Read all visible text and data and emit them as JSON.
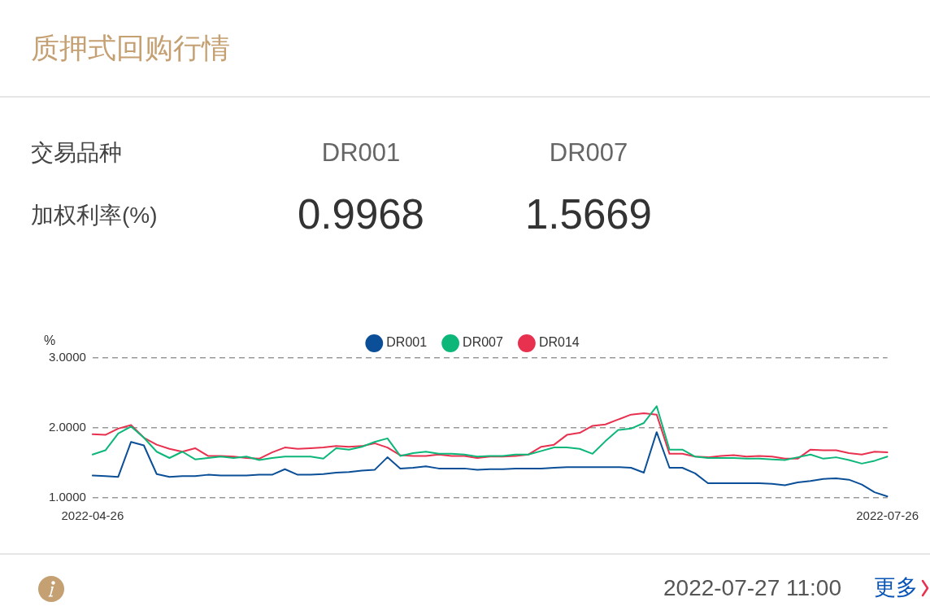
{
  "chart_data": {
    "type": "line",
    "title": "质押式回购行情",
    "ylabel": "%",
    "categories": [
      "2022-04-26",
      null,
      null,
      null,
      null,
      null,
      null,
      null,
      null,
      null,
      null,
      null,
      null,
      null,
      null,
      null,
      null,
      null,
      null,
      null,
      null,
      null,
      null,
      null,
      null,
      null,
      null,
      null,
      null,
      null,
      null,
      null,
      null,
      null,
      null,
      null,
      null,
      null,
      null,
      null,
      null,
      null,
      null,
      null,
      null,
      null,
      null,
      null,
      null,
      null,
      null,
      null,
      null,
      null,
      null,
      null,
      null,
      null,
      null,
      null,
      null,
      null,
      "2022-07-26"
    ],
    "series": [
      {
        "name": "DR001",
        "color": "#0b4f98",
        "values": [
          1.32,
          1.31,
          1.3,
          1.8,
          1.75,
          1.34,
          1.3,
          1.31,
          1.31,
          1.33,
          1.32,
          1.32,
          1.32,
          1.33,
          1.33,
          1.41,
          1.33,
          1.33,
          1.34,
          1.36,
          1.37,
          1.39,
          1.4,
          1.58,
          1.42,
          1.43,
          1.45,
          1.42,
          1.42,
          1.42,
          1.4,
          1.41,
          1.41,
          1.42,
          1.42,
          1.42,
          1.43,
          1.44,
          1.44,
          1.44,
          1.44,
          1.44,
          1.43,
          1.36,
          1.94,
          1.43,
          1.43,
          1.35,
          1.21,
          1.21,
          1.21,
          1.21,
          1.21,
          1.2,
          1.18,
          1.22,
          1.24,
          1.27,
          1.28,
          1.26,
          1.19,
          1.08,
          1.02
        ]
      },
      {
        "name": "DR007",
        "color": "#0db77a",
        "values": [
          1.62,
          1.68,
          1.92,
          2.02,
          1.86,
          1.66,
          1.57,
          1.66,
          1.55,
          1.57,
          1.59,
          1.57,
          1.59,
          1.54,
          1.57,
          1.59,
          1.59,
          1.59,
          1.56,
          1.71,
          1.69,
          1.73,
          1.8,
          1.85,
          1.6,
          1.64,
          1.66,
          1.63,
          1.63,
          1.62,
          1.59,
          1.6,
          1.6,
          1.62,
          1.62,
          1.67,
          1.72,
          1.72,
          1.7,
          1.63,
          1.81,
          1.97,
          1.99,
          2.07,
          2.31,
          1.69,
          1.69,
          1.59,
          1.57,
          1.57,
          1.57,
          1.56,
          1.56,
          1.55,
          1.54,
          1.58,
          1.62,
          1.56,
          1.58,
          1.54,
          1.49,
          1.53,
          1.59
        ]
      },
      {
        "name": "DR014",
        "color": "#e8304f",
        "values": [
          1.91,
          1.9,
          1.99,
          2.04,
          1.86,
          1.76,
          1.7,
          1.66,
          1.71,
          1.6,
          1.6,
          1.59,
          1.57,
          1.56,
          1.65,
          1.72,
          1.7,
          1.71,
          1.72,
          1.74,
          1.73,
          1.74,
          1.78,
          1.72,
          1.61,
          1.6,
          1.6,
          1.62,
          1.6,
          1.6,
          1.57,
          1.59,
          1.59,
          1.6,
          1.62,
          1.73,
          1.76,
          1.9,
          1.93,
          2.03,
          2.05,
          2.12,
          2.19,
          2.21,
          2.19,
          1.63,
          1.63,
          1.59,
          1.58,
          1.6,
          1.61,
          1.59,
          1.6,
          1.59,
          1.56,
          1.56,
          1.69,
          1.68,
          1.68,
          1.64,
          1.62,
          1.66,
          1.65
        ]
      }
    ],
    "ylim": [
      1,
      3
    ],
    "yticks": [
      {
        "value": 1,
        "label": "1.0000"
      },
      {
        "value": 2,
        "label": "2.0000"
      },
      {
        "value": 3,
        "label": "3.0000"
      }
    ],
    "grid": "y",
    "legend": "top",
    "marker": "none",
    "line_style": "solid",
    "annotations": [
      "交易品种",
      "DR001",
      "DR007",
      "加权利率(%)",
      "0.9968",
      "1.5669",
      "2022-07-27 11:00",
      "更多"
    ]
  }
}
